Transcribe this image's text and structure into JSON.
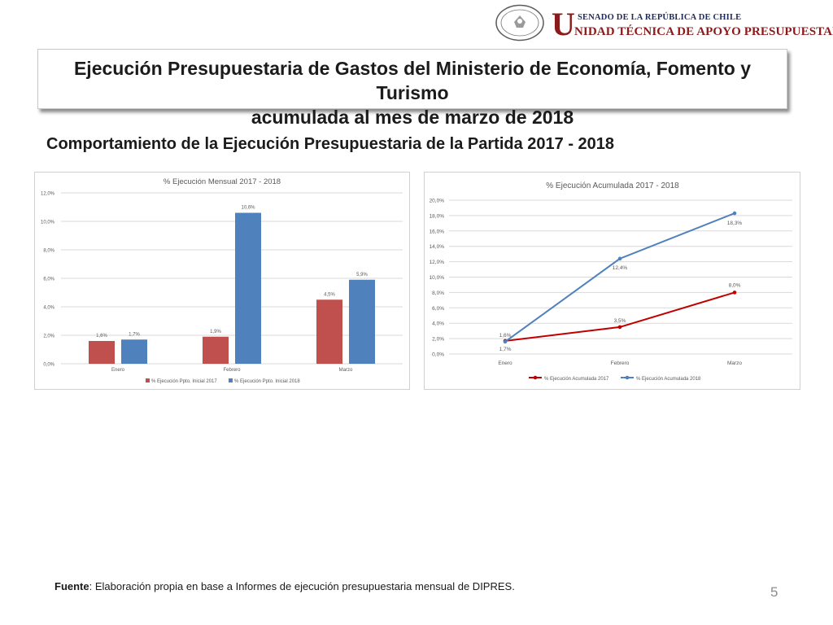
{
  "header": {
    "seal_line1": "REPÚBLICA DE CHILE",
    "seal_line2": "SENADO",
    "brand_initial": "U",
    "brand_top": "SENADO DE LA REPÚBLICA DE CHILE",
    "brand_bottom": "NIDAD TÉCNICA DE APOYO PRESUPUESTARIO"
  },
  "title": {
    "line1": "Ejecución Presupuestaria de Gastos del Ministerio de Economía, Fomento y Turismo",
    "line2": "acumulada al mes de marzo de 2018"
  },
  "subtitle": "Comportamiento de la Ejecución Presupuestaria de la Partida 2017 - 2018",
  "footer": {
    "source_label": "Fuente",
    "source_text": ": Elaboración propia en base a Informes de ejecución presupuestaria mensual de DIPRES.",
    "page_number": "5"
  },
  "chart_data": [
    {
      "type": "bar",
      "title": "% Ejecución Mensual 2017 - 2018",
      "categories": [
        "Enero",
        "Febrero",
        "Marzo"
      ],
      "series": [
        {
          "name": "% Ejecución Ppto. Inicial 2017",
          "values": [
            1.6,
            1.9,
            4.5
          ],
          "labels": [
            "1,6%",
            "1,9%",
            "4,5%"
          ],
          "color": "#c0504d"
        },
        {
          "name": "% Ejecución Ppto. Inicial 2018",
          "values": [
            1.7,
            10.6,
            5.9
          ],
          "labels": [
            "1,7%",
            "10,6%",
            "5,9%"
          ],
          "color": "#4f81bd"
        }
      ],
      "ylim": [
        0,
        12
      ],
      "yticks": [
        0,
        2,
        4,
        6,
        8,
        10,
        12
      ],
      "ytick_labels": [
        "0,0%",
        "2,0%",
        "4,0%",
        "6,0%",
        "8,0%",
        "10,0%",
        "12,0%"
      ],
      "grid": true,
      "legend": "bottom"
    },
    {
      "type": "line",
      "title": "% Ejecución Acumulada 2017 - 2018",
      "categories": [
        "Enero",
        "Febrero",
        "Marzo"
      ],
      "series": [
        {
          "name": "% Ejecución Acumulada 2017",
          "values": [
            1.7,
            3.5,
            8.0
          ],
          "labels": [
            "1,7%",
            "3,5%",
            "8,0%"
          ],
          "color": "#c00000"
        },
        {
          "name": "% Ejecución Acumulada 2018",
          "values": [
            1.6,
            12.4,
            18.3
          ],
          "labels": [
            "1,6%",
            "12,4%",
            "18,3%"
          ],
          "color": "#4f81bd"
        }
      ],
      "ylim": [
        0,
        20
      ],
      "yticks": [
        0,
        2,
        4,
        6,
        8,
        10,
        12,
        14,
        16,
        18,
        20
      ],
      "ytick_labels": [
        "0,0%",
        "2,0%",
        "4,0%",
        "6,0%",
        "8,0%",
        "10,0%",
        "12,0%",
        "14,0%",
        "16,0%",
        "18,0%",
        "20,0%"
      ],
      "grid": true,
      "legend": "bottom"
    }
  ]
}
